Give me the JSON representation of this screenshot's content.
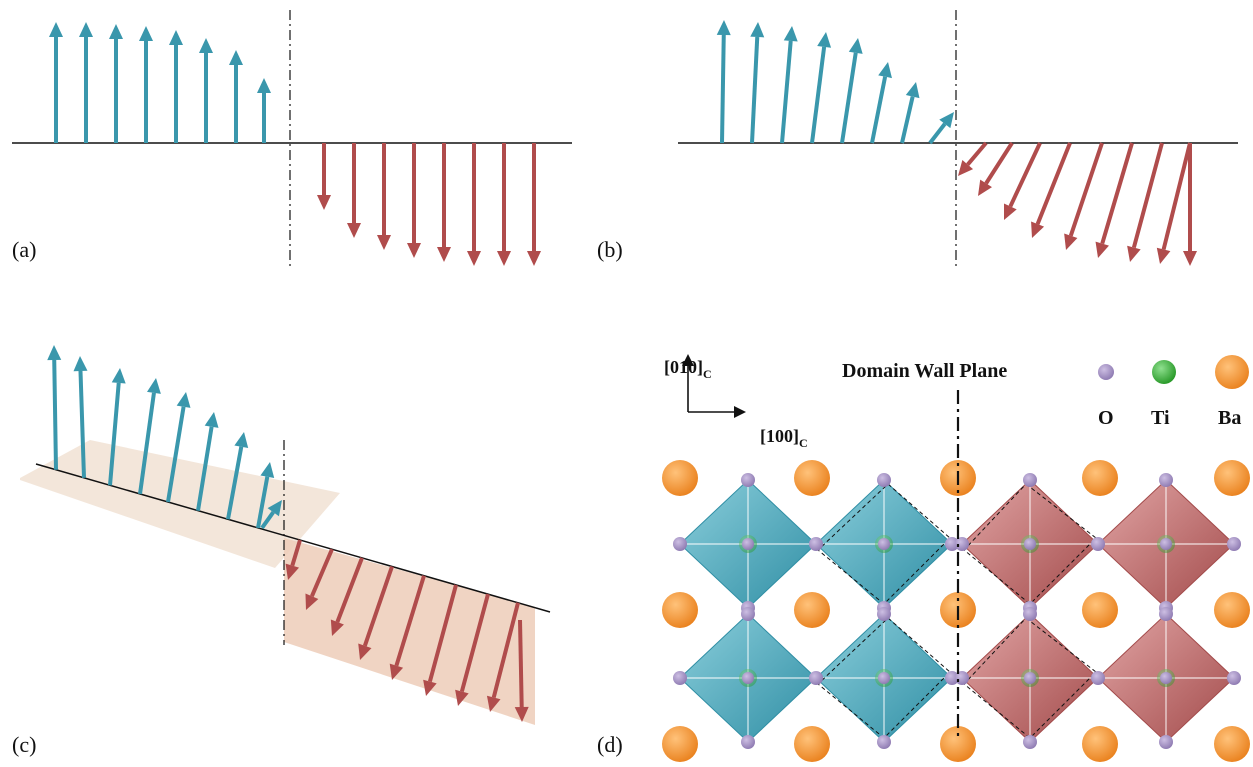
{
  "panels": {
    "a": {
      "label": "(a)"
    },
    "b": {
      "label": "(b)"
    },
    "c": {
      "label": "(c)"
    },
    "d": {
      "label": "(d)",
      "wall_title": "Domain Wall Plane",
      "axis_y": {
        "main": "[010]",
        "sub": "C"
      },
      "axis_x": {
        "main": "[100]",
        "sub": "C"
      },
      "legend": [
        {
          "label": "O",
          "color": "#a08cc0"
        },
        {
          "label": "Ti",
          "color": "#3aa83a"
        },
        {
          "label": "Ba",
          "color": "#f08c28"
        }
      ]
    }
  },
  "colors": {
    "up_domain": "#3a97ac",
    "down_domain": "#b04c4c",
    "octahedron_up": "#4aa7ba",
    "octahedron_down": "#b86464",
    "oxygen": "#a08cc0",
    "barium": "#f08c28",
    "baseline": "#111111"
  }
}
